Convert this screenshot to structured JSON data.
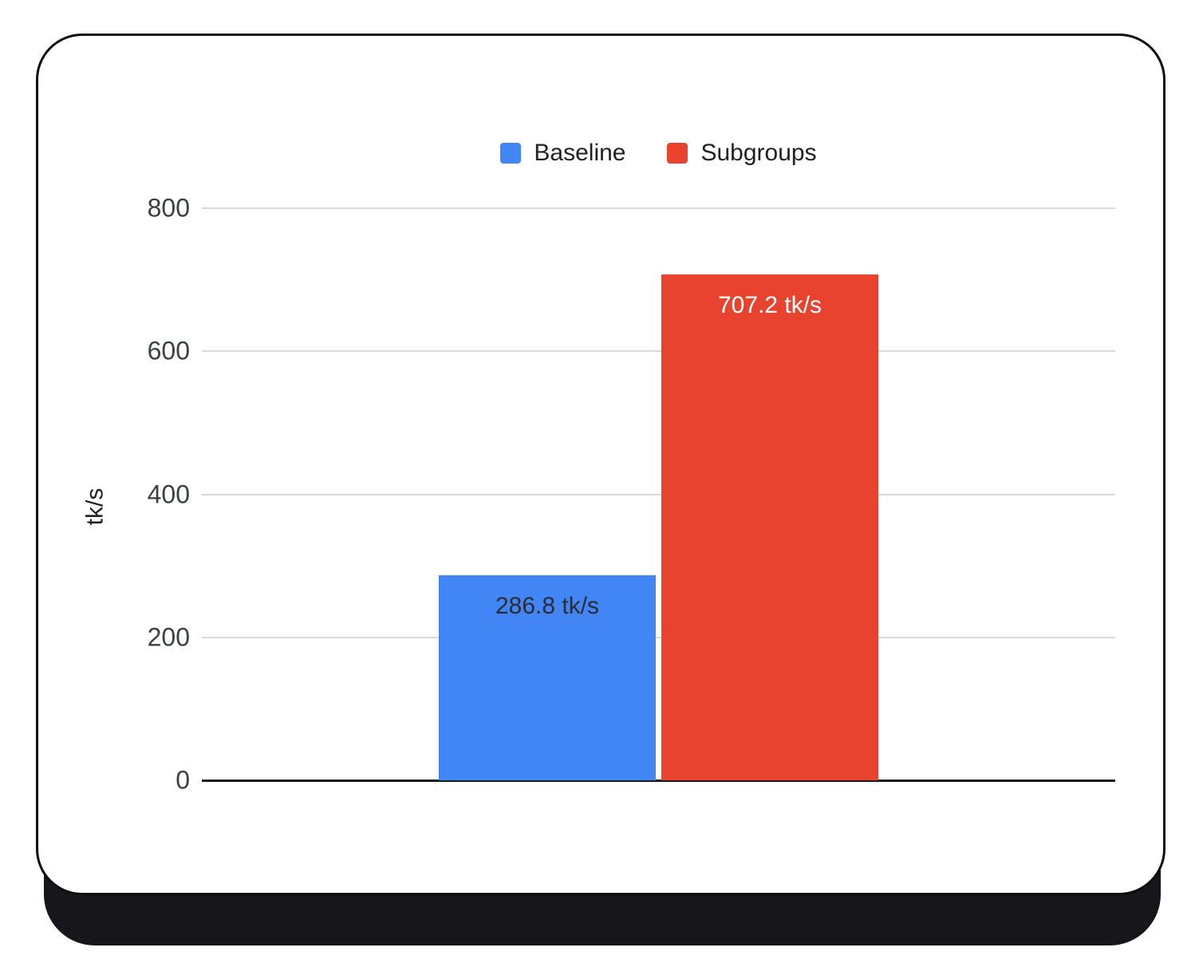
{
  "card": {
    "background": "#ffffff",
    "border_color": "#0e0e10"
  },
  "chart_data": {
    "type": "bar",
    "title": "",
    "xlabel": "",
    "ylabel": "tk/s",
    "ylim": [
      0,
      800
    ],
    "yticks": [
      0,
      200,
      400,
      600,
      800
    ],
    "grid": true,
    "legend_position": "top-center",
    "categories": [
      "Baseline",
      "Subgroups"
    ],
    "series": [
      {
        "name": "Baseline",
        "value": 286.8,
        "data_label": "286.8 tk/s",
        "color": "#4285f4",
        "label_color": "#2b2b33"
      },
      {
        "name": "Subgroups",
        "value": 707.2,
        "data_label": "707.2 tk/s",
        "color": "#e8432e",
        "label_color": "#ffffff"
      }
    ]
  }
}
